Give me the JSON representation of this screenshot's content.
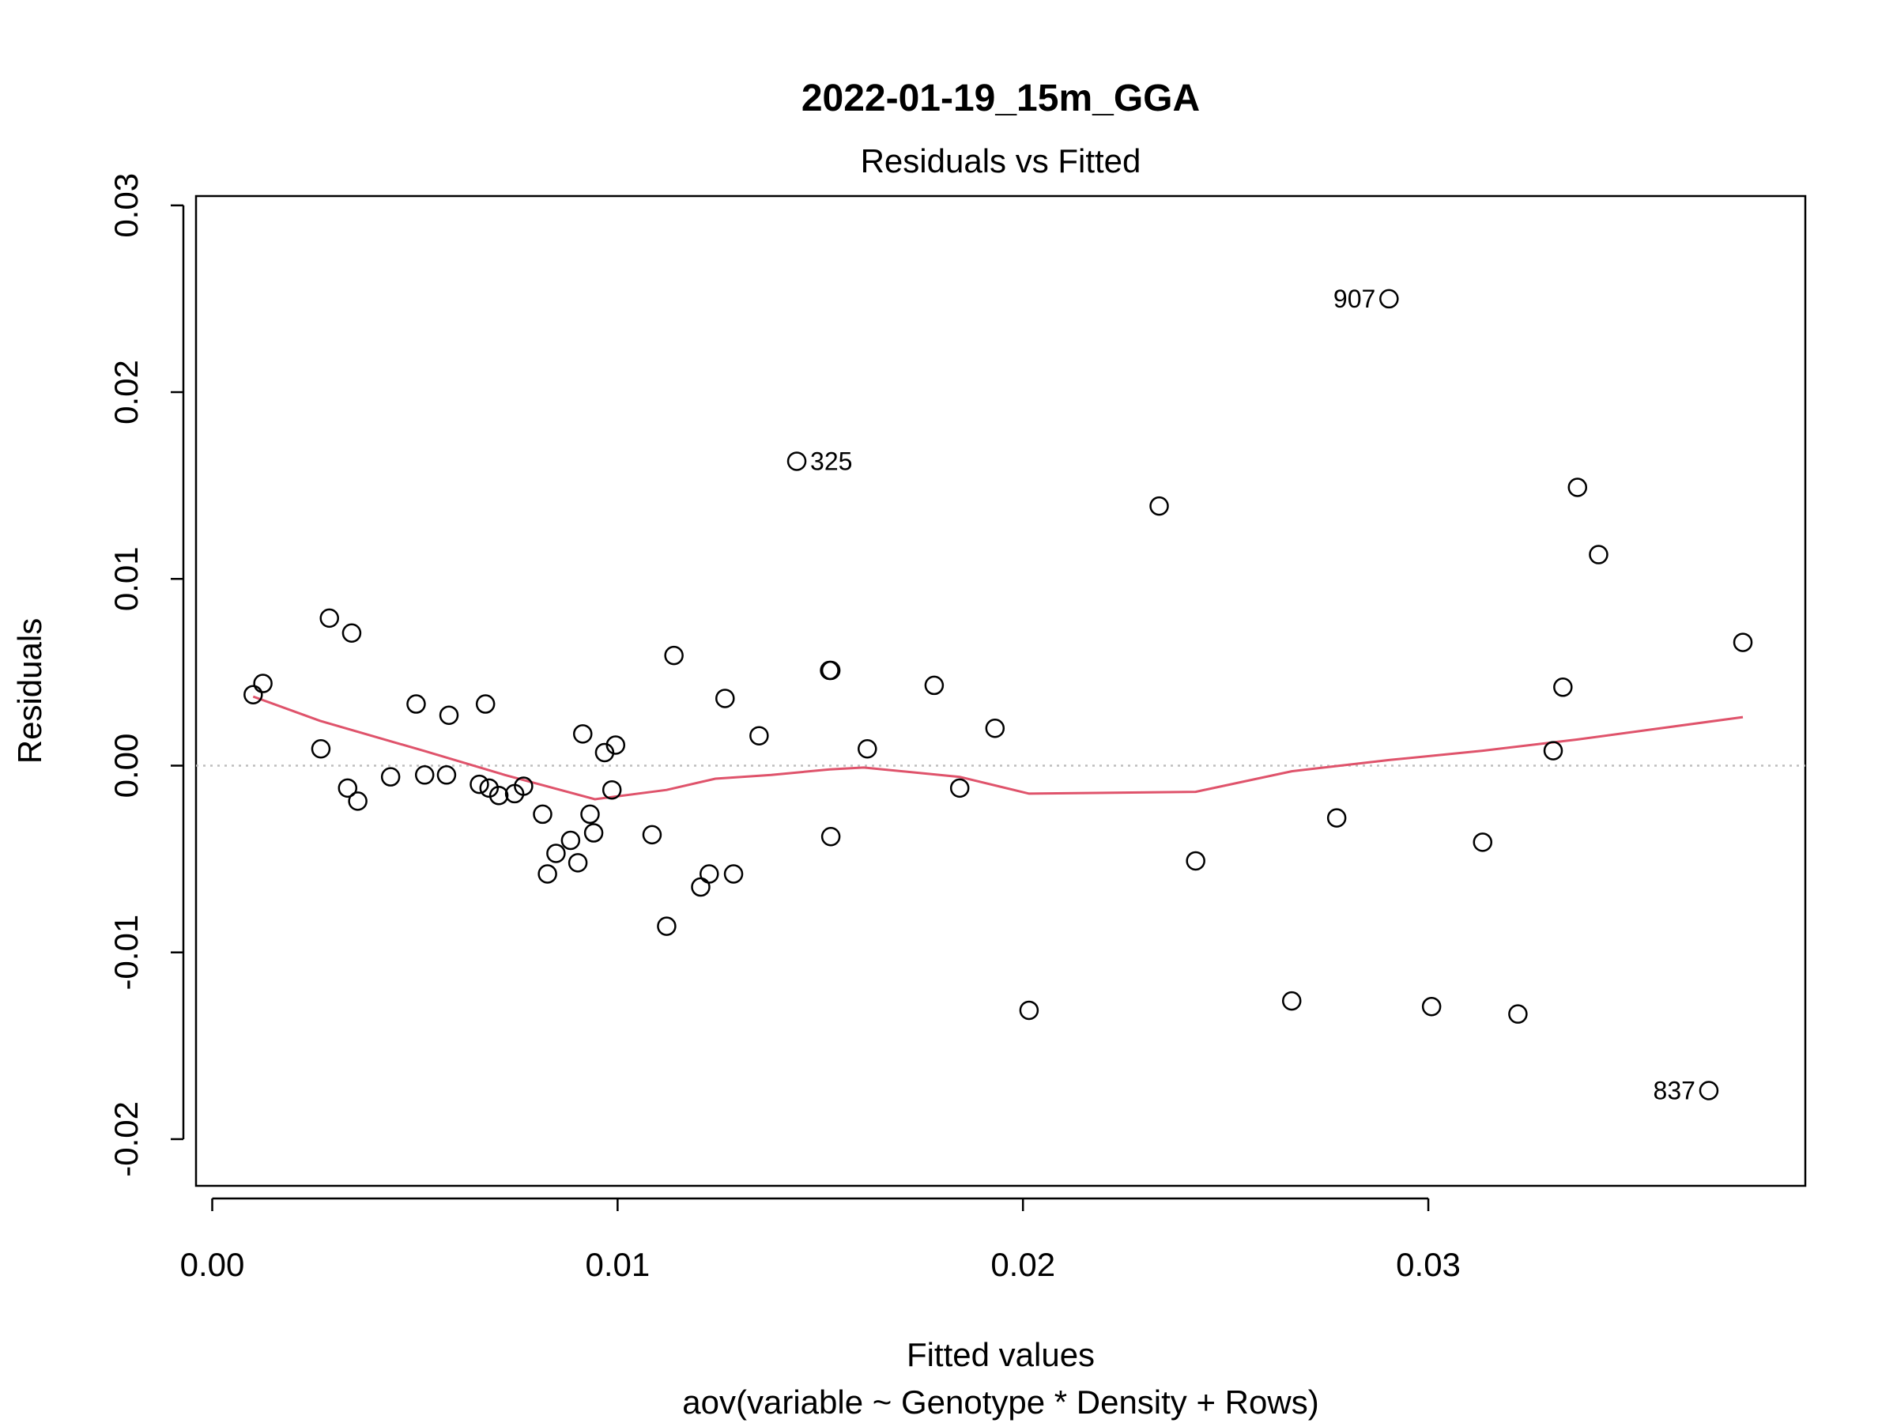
{
  "chart_data": {
    "type": "scatter",
    "title": "2022-01-19_15m_GGA",
    "subtitle": "Residuals vs Fitted",
    "xlabel": "Fitted values",
    "xlabel_sub": "aov(variable ~ Genotype * Density + Rows)",
    "ylabel": "Residuals",
    "xlim": [
      -0.0004,
      0.0393
    ],
    "ylim": [
      -0.0225,
      0.0305
    ],
    "x_ticks": [
      0.0,
      0.01,
      0.02,
      0.03
    ],
    "x_tick_labels": [
      "0.00",
      "0.01",
      "0.02",
      "0.03"
    ],
    "y_ticks": [
      -0.02,
      -0.01,
      0.0,
      0.01,
      0.02,
      0.03
    ],
    "y_tick_labels": [
      "-0.02",
      "-0.01",
      "0.00",
      "0.01",
      "0.02",
      "0.03"
    ],
    "grid": false,
    "reference_line": {
      "y": 0,
      "style": "dotted",
      "color": "#bebebe"
    },
    "colors": {
      "points": "#000000",
      "smooth": "#df536b",
      "reference": "#bebebe"
    },
    "points": [
      {
        "x": 0.00101,
        "y": 0.0038
      },
      {
        "x": 0.00125,
        "y": 0.0044
      },
      {
        "x": 0.00268,
        "y": 0.0009
      },
      {
        "x": 0.00289,
        "y": 0.0079
      },
      {
        "x": 0.00334,
        "y": -0.0012
      },
      {
        "x": 0.00344,
        "y": 0.0071
      },
      {
        "x": 0.00359,
        "y": -0.0019
      },
      {
        "x": 0.0044,
        "y": -0.0006
      },
      {
        "x": 0.00503,
        "y": 0.0033
      },
      {
        "x": 0.00524,
        "y": -0.0005
      },
      {
        "x": 0.00578,
        "y": -0.0005
      },
      {
        "x": 0.00584,
        "y": 0.0027
      },
      {
        "x": 0.00659,
        "y": -0.001
      },
      {
        "x": 0.00674,
        "y": 0.0033
      },
      {
        "x": 0.00683,
        "y": -0.0012
      },
      {
        "x": 0.00707,
        "y": -0.0016
      },
      {
        "x": 0.00746,
        "y": -0.0015
      },
      {
        "x": 0.00768,
        "y": -0.0011
      },
      {
        "x": 0.00815,
        "y": -0.0026
      },
      {
        "x": 0.00827,
        "y": -0.0058
      },
      {
        "x": 0.00848,
        "y": -0.0047
      },
      {
        "x": 0.00884,
        "y": -0.004
      },
      {
        "x": 0.00902,
        "y": -0.0052
      },
      {
        "x": 0.00914,
        "y": 0.0017
      },
      {
        "x": 0.00932,
        "y": -0.0026
      },
      {
        "x": 0.00941,
        "y": -0.0036
      },
      {
        "x": 0.00968,
        "y": 0.0007
      },
      {
        "x": 0.00986,
        "y": -0.0013
      },
      {
        "x": 0.00995,
        "y": 0.0011
      },
      {
        "x": 0.01085,
        "y": -0.0037
      },
      {
        "x": 0.01121,
        "y": -0.0086
      },
      {
        "x": 0.01139,
        "y": 0.0059
      },
      {
        "x": 0.01205,
        "y": -0.0065
      },
      {
        "x": 0.01226,
        "y": -0.0058
      },
      {
        "x": 0.01265,
        "y": 0.0036
      },
      {
        "x": 0.01286,
        "y": -0.0058
      },
      {
        "x": 0.01349,
        "y": 0.0016
      },
      {
        "x": 0.01442,
        "y": 0.0163,
        "label": "325"
      },
      {
        "x": 0.01523,
        "y": 0.0051
      },
      {
        "x": 0.01526,
        "y": 0.0051
      },
      {
        "x": 0.01526,
        "y": -0.0038
      },
      {
        "x": 0.01616,
        "y": 0.0009
      },
      {
        "x": 0.01781,
        "y": 0.0043
      },
      {
        "x": 0.01844,
        "y": -0.0012
      },
      {
        "x": 0.01931,
        "y": 0.002
      },
      {
        "x": 0.02015,
        "y": -0.0131
      },
      {
        "x": 0.02336,
        "y": 0.0139
      },
      {
        "x": 0.02426,
        "y": -0.0051
      },
      {
        "x": 0.02663,
        "y": -0.0126
      },
      {
        "x": 0.02774,
        "y": -0.0028
      },
      {
        "x": 0.02903,
        "y": 0.025,
        "label": "907"
      },
      {
        "x": 0.03008,
        "y": -0.0129
      },
      {
        "x": 0.03134,
        "y": -0.0041
      },
      {
        "x": 0.03221,
        "y": -0.0133
      },
      {
        "x": 0.03308,
        "y": 0.0008
      },
      {
        "x": 0.03332,
        "y": 0.0042
      },
      {
        "x": 0.03368,
        "y": 0.0149
      },
      {
        "x": 0.0342,
        "y": 0.0113
      },
      {
        "x": 0.03692,
        "y": -0.0174,
        "label": "837"
      },
      {
        "x": 0.03776,
        "y": 0.0066
      }
    ],
    "smooth_line": {
      "x": [
        0.00101,
        0.00266,
        0.00521,
        0.00722,
        0.00944,
        0.01121,
        0.01241,
        0.01379,
        0.01523,
        0.01607,
        0.01844,
        0.02015,
        0.02426,
        0.02663,
        0.02903,
        0.03134,
        0.03368,
        0.03776
      ],
      "y": [
        0.0037,
        0.0024,
        0.0008,
        -0.0005,
        -0.0018,
        -0.0013,
        -0.0007,
        -0.0005,
        -0.0002,
        -0.0001,
        -0.0006,
        -0.0015,
        -0.0014,
        -0.0003,
        0.0003,
        0.0008,
        0.0014,
        0.0026
      ]
    }
  }
}
